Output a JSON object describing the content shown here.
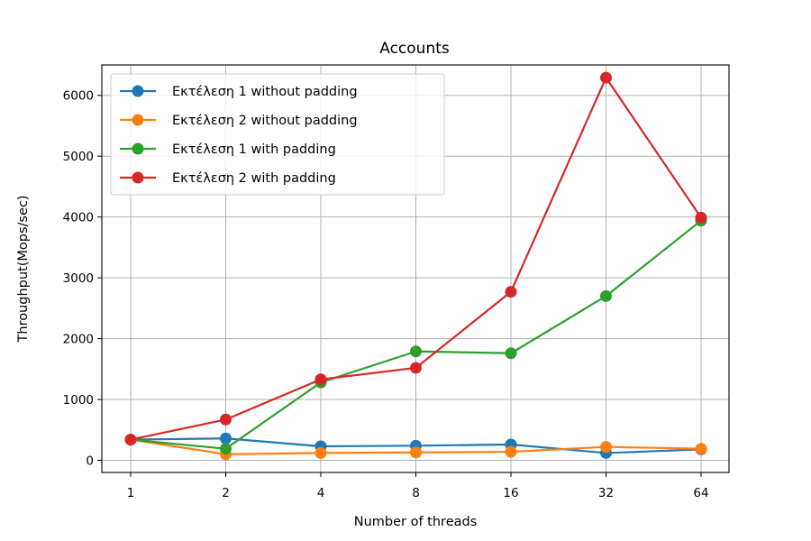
{
  "chart_data": {
    "type": "line",
    "title": "Accounts",
    "xlabel": "Number of threads",
    "ylabel": "Throughput(Mops/sec)",
    "categories": [
      "1",
      "2",
      "4",
      "8",
      "16",
      "32",
      "64"
    ],
    "ylim": [
      -200,
      6500
    ],
    "yticks": [
      0,
      1000,
      2000,
      3000,
      4000,
      5000,
      6000
    ],
    "grid": true,
    "legend_position": "upper-left",
    "series": [
      {
        "name": "Εκτέλεση 1 without padding",
        "color": "#1f77b4",
        "values": [
          340,
          360,
          230,
          240,
          260,
          120,
          180
        ]
      },
      {
        "name": "Εκτέλεση 2 without padding",
        "color": "#ff7f0e",
        "values": [
          340,
          100,
          120,
          130,
          140,
          220,
          190
        ]
      },
      {
        "name": "Εκτέλεση 1 with padding",
        "color": "#2ca02c",
        "values": [
          340,
          190,
          1280,
          1790,
          1760,
          2700,
          3940
        ]
      },
      {
        "name": "Εκτέλεση 2 with padding",
        "color": "#d62728",
        "values": [
          340,
          670,
          1330,
          1520,
          2770,
          6290,
          3990
        ]
      }
    ]
  }
}
